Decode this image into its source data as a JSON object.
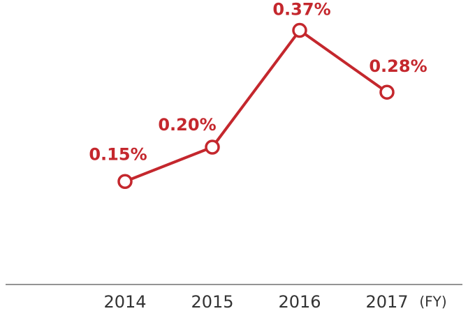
{
  "chart_data": {
    "type": "line",
    "categories": [
      "2014",
      "2015",
      "2016",
      "2017"
    ],
    "values": [
      0.15,
      0.2,
      0.37,
      0.28
    ],
    "value_labels": [
      "0.15%",
      "0.20%",
      "0.37%",
      "0.28%"
    ],
    "x_label": "(FY)",
    "color": "#c4272d",
    "ylim": [
      0,
      0.4
    ]
  }
}
